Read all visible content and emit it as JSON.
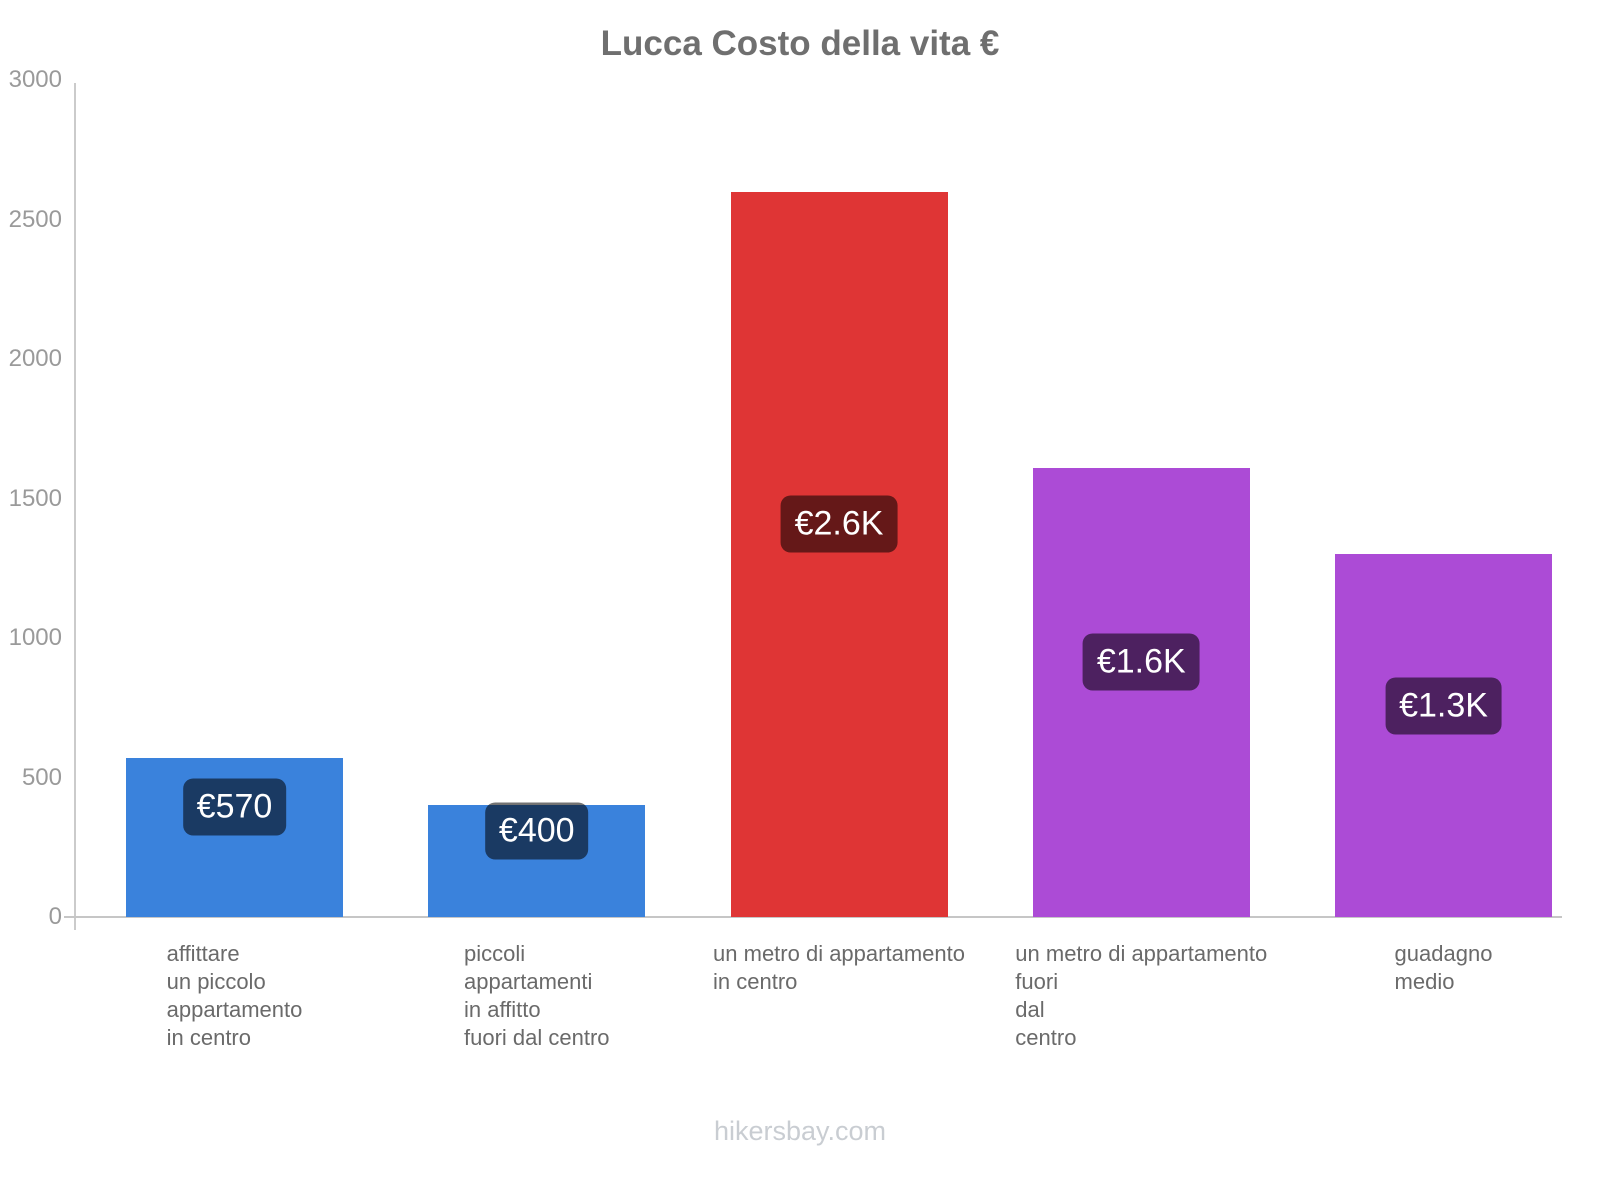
{
  "title": "Lucca Costo della vita €",
  "footer": "hikersbay.com",
  "chart_data": {
    "type": "bar",
    "title": "Lucca Costo della vita €",
    "categories": [
      "affittare\nun piccolo\nappartamento\nin centro",
      "piccoli\nappartamenti\nin affitto\nfuori dal centro",
      "un metro di appartamento\nin centro",
      "un metro di appartamento\nfuori\ndal\ncentro",
      "guadagno\nmedio"
    ],
    "values": [
      570,
      400,
      2600,
      1610,
      1300
    ],
    "value_labels": [
      "€570",
      "€400",
      "€2.6K",
      "€1.6K",
      "€1.3K"
    ],
    "bar_colors": [
      "#3a82dc",
      "#3a82dc",
      "#df3535",
      "#ac4bd6",
      "#ac4bd6"
    ],
    "badge_overlay_color": "rgba(0,0,0,0.55)",
    "currency": "€",
    "xlabel": "",
    "ylabel": "",
    "ylim": [
      0,
      3000
    ],
    "yticks": [
      0,
      500,
      1000,
      1500,
      2000,
      2500,
      3000
    ],
    "grid": false,
    "legend": "none",
    "axis_color": "#cbcbcb",
    "title_color": "#6f6f6f",
    "tick_text_color": "#9a9a9a",
    "category_text_color": "#6a6a6a",
    "footer_text_color": "#c9cdd2"
  }
}
